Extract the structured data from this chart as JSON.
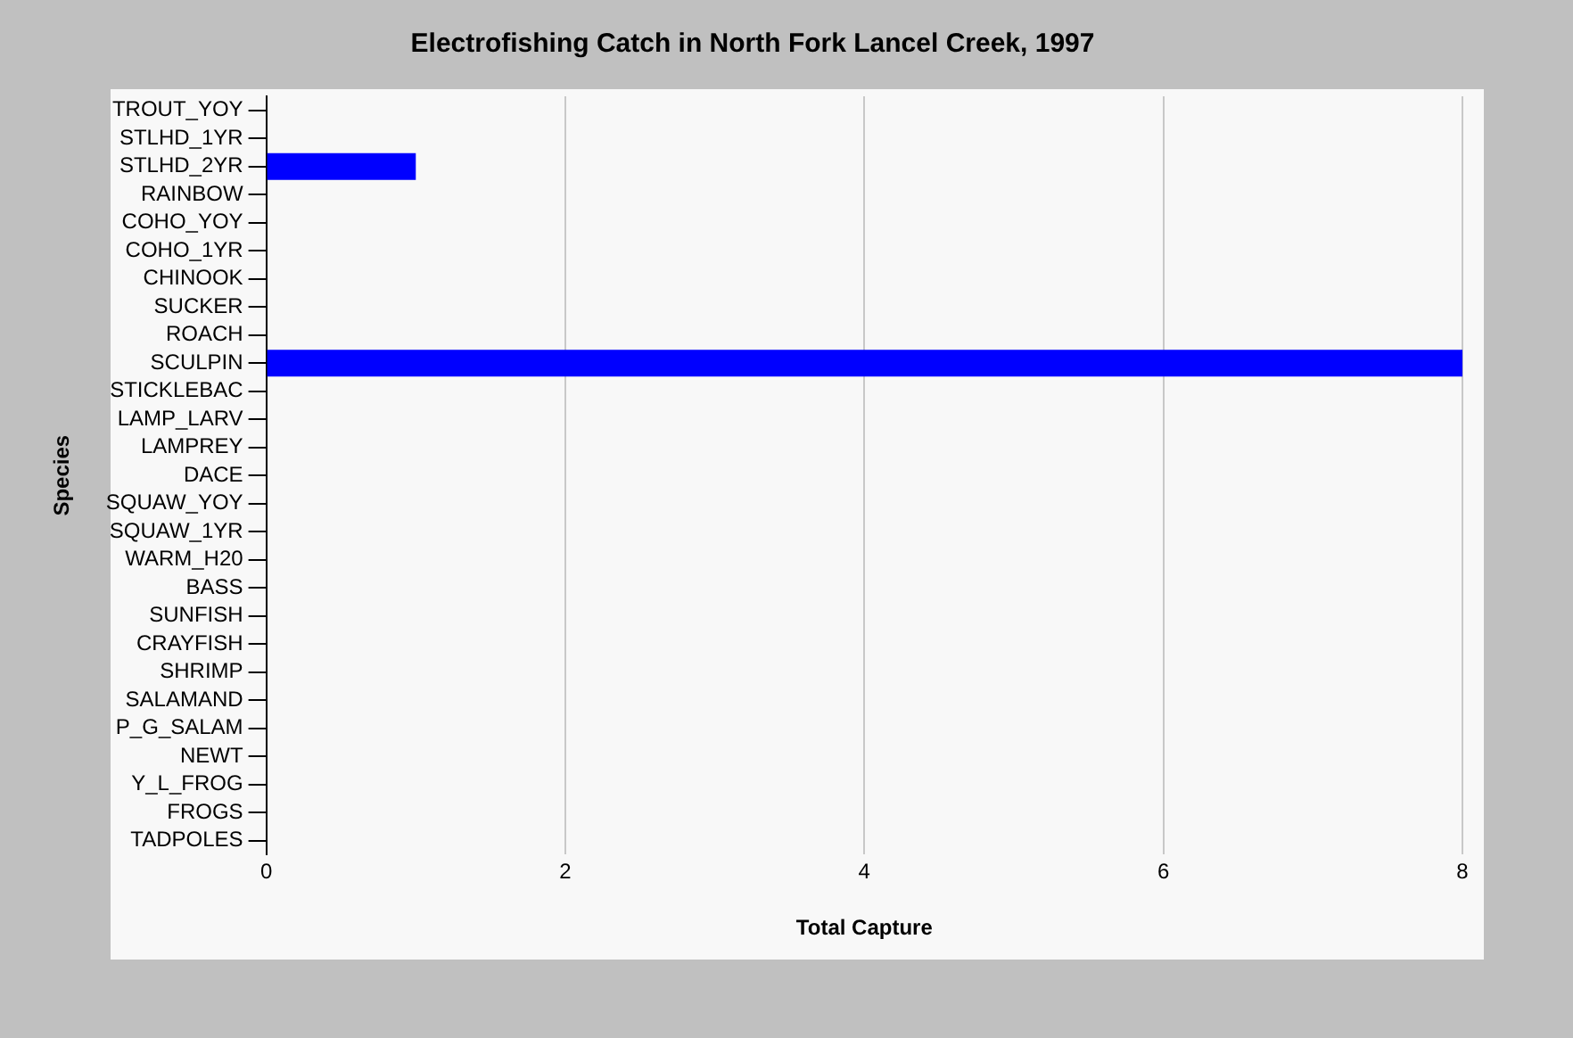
{
  "chart_data": {
    "type": "bar",
    "orientation": "horizontal",
    "title": "Electrofishing Catch in North Fork Lancel Creek, 1997",
    "xlabel": "Total Capture",
    "ylabel": "Species",
    "categories": [
      "TROUT_YOY",
      "STLHD_1YR",
      "STLHD_2YR",
      "RAINBOW",
      "COHO_YOY",
      "COHO_1YR",
      "CHINOOK",
      "SUCKER",
      "ROACH",
      "SCULPIN",
      "STICKLEBAC",
      "LAMP_LARV",
      "LAMPREY",
      "DACE",
      "SQUAW_YOY",
      "SQUAW_1YR",
      "WARM_H20",
      "BASS",
      "SUNFISH",
      "CRAYFISH",
      "SHRIMP",
      "SALAMAND",
      "P_G_SALAM",
      "NEWT",
      "Y_L_FROG",
      "FROGS",
      "TADPOLES"
    ],
    "values": [
      0,
      0,
      1,
      0,
      0,
      0,
      0,
      0,
      0,
      8,
      0,
      0,
      0,
      0,
      0,
      0,
      0,
      0,
      0,
      0,
      0,
      0,
      0,
      0,
      0,
      0,
      0
    ],
    "color": "#0000ff",
    "xlim": [
      0,
      8
    ],
    "xticks": [
      0,
      2,
      4,
      6,
      8
    ],
    "grid": "x",
    "legend": false
  }
}
